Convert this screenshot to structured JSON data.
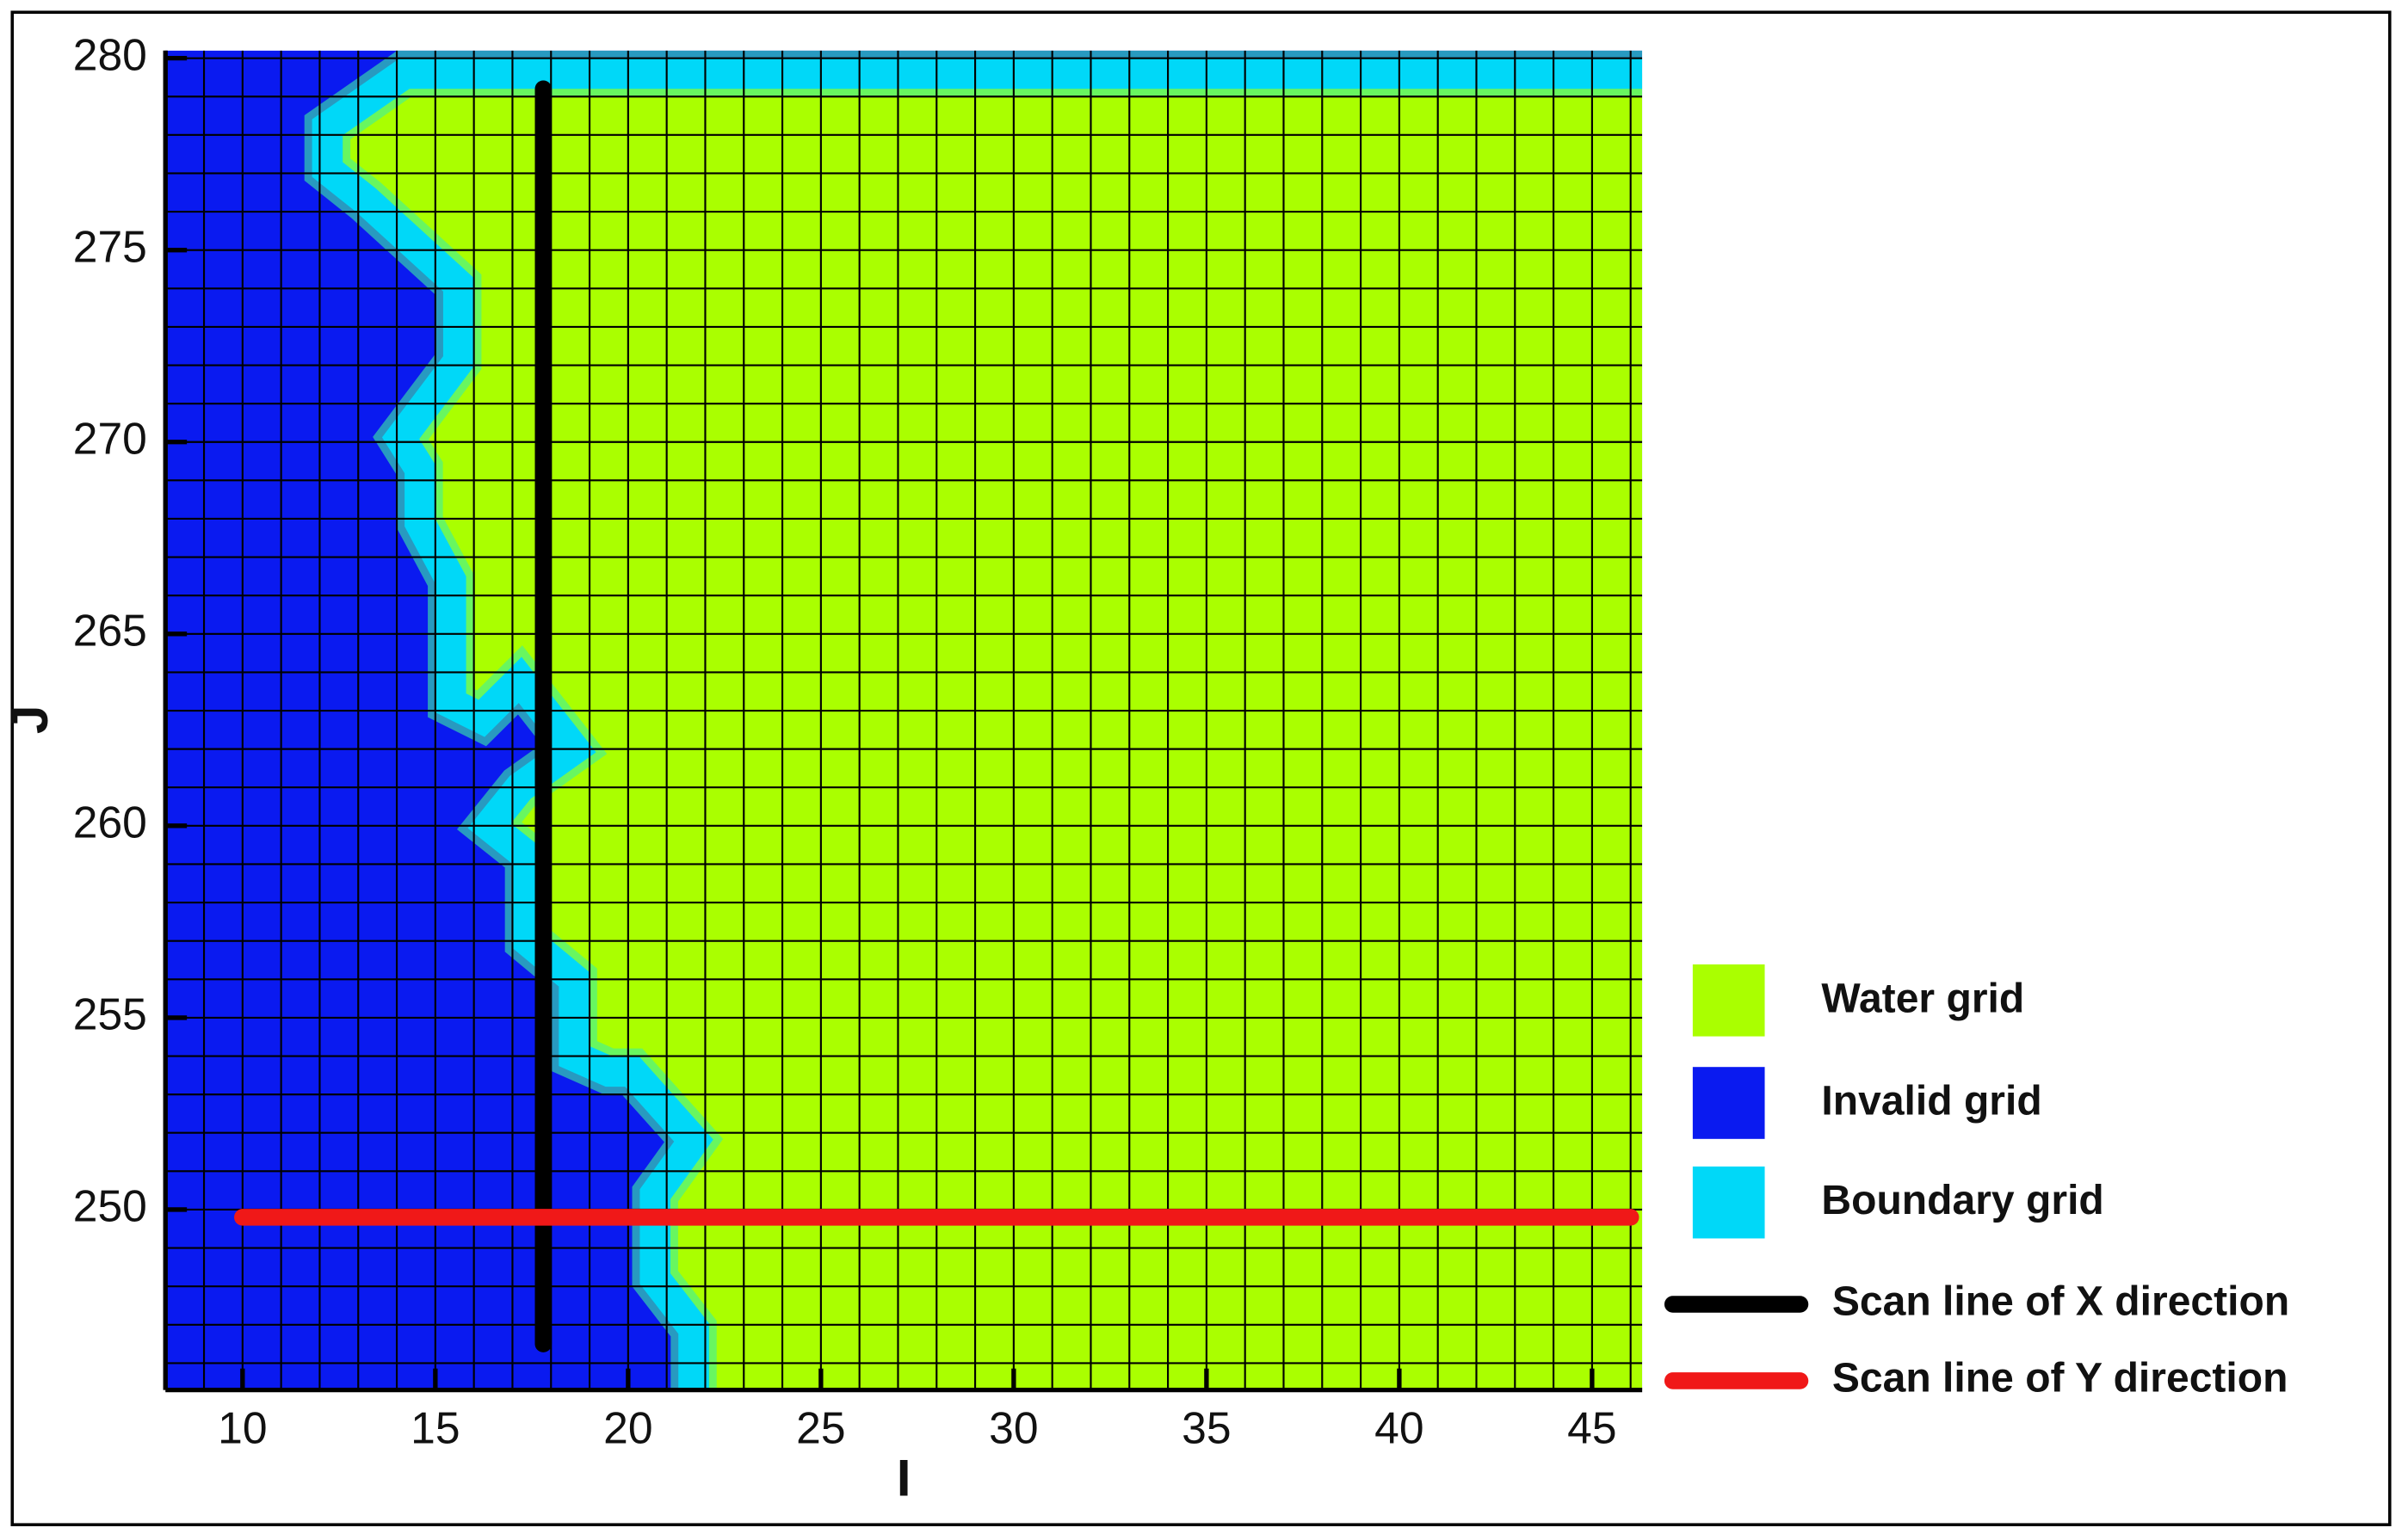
{
  "chart_data": {
    "type": "grid-map",
    "xlabel": "I",
    "ylabel": "J",
    "xlim": [
      8,
      46.3
    ],
    "ylim": [
      245.3,
      280.2
    ],
    "xticks": [
      10,
      15,
      20,
      25,
      30,
      35,
      40,
      45
    ],
    "yticks": [
      250,
      255,
      260,
      265,
      270,
      275,
      280
    ],
    "regions": [
      {
        "name": "Water grid",
        "color": "#aaff00"
      },
      {
        "name": "Invalid grid",
        "color": "#0a1af0"
      },
      {
        "name": "Boundary grid",
        "color": "#00d8f8",
        "x": [
          46.3,
          14.2,
          12.2,
          12.2,
          13.2,
          15.6,
          15.6,
          14.1,
          14.6,
          14.6,
          15.4,
          15.4,
          16.2,
          17.2,
          18.6,
          17.2,
          16.4,
          17.4,
          17.4,
          18.6,
          18.6,
          19.5,
          20.1,
          21.7,
          20.7,
          20.7,
          21.7,
          21.7
        ],
        "y": [
          279.6,
          279.6,
          278.2,
          277.1,
          276.3,
          274.1,
          272.1,
          270.1,
          269.3,
          267.9,
          266.4,
          263.2,
          262.8,
          263.8,
          262,
          261,
          260,
          259.2,
          257,
          256,
          254,
          253.6,
          253.6,
          251.8,
          250.4,
          248.2,
          246.9,
          245.3
        ]
      }
    ],
    "scan_lines": [
      {
        "name": "Scan line of X direction",
        "color": "#000000",
        "x": [
          17.8,
          17.8
        ],
        "y": [
          246.5,
          279.2
        ]
      },
      {
        "name": "Scan line of Y direction",
        "color": "#f01818",
        "x": [
          10,
          46
        ],
        "y": [
          249.8,
          249.8
        ]
      }
    ]
  }
}
